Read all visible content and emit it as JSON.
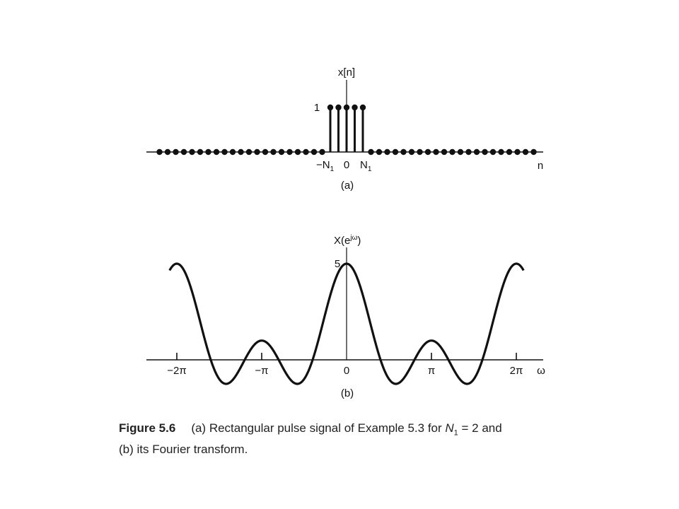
{
  "chart_data": [
    {
      "type": "stem",
      "panel_label": "(a)",
      "ylabel": "x[n]",
      "xlabel": "n",
      "n_min": -23,
      "n_max": 23,
      "N1": 2,
      "nonzero_indices": [
        -2,
        -1,
        0,
        1,
        2
      ],
      "nonzero_value": 1,
      "y_tick_label": "1",
      "x_tick_labels": {
        "minus_N1": "−N",
        "minus_N1_sub": "1",
        "zero": "0",
        "N1": "N",
        "N1_sub": "1"
      }
    },
    {
      "type": "line",
      "panel_label": "(b)",
      "ylabel_main": "X(e",
      "ylabel_sup": "jω",
      "ylabel_close": ")",
      "xlabel": "ω",
      "function": "sin(5ω/2)/sin(ω/2)",
      "xlim": [
        -6.8,
        6.8
      ],
      "peak_value": 5,
      "y_tick_label": "5",
      "x_ticks": [
        {
          "value": -6.2832,
          "label": "−2π"
        },
        {
          "value": -3.1416,
          "label": "−π"
        },
        {
          "value": 0,
          "label": "0"
        },
        {
          "value": 3.1416,
          "label": "π"
        },
        {
          "value": 6.2832,
          "label": "2π"
        }
      ]
    }
  ],
  "caption": {
    "figure_label": "Figure 5.6",
    "line1_a": "(a) Rectangular pulse signal of Example 5.3 for ",
    "line1_var": "N",
    "line1_sub": "1",
    "line1_b": " = 2 and",
    "line2": "(b) its Fourier transform."
  }
}
